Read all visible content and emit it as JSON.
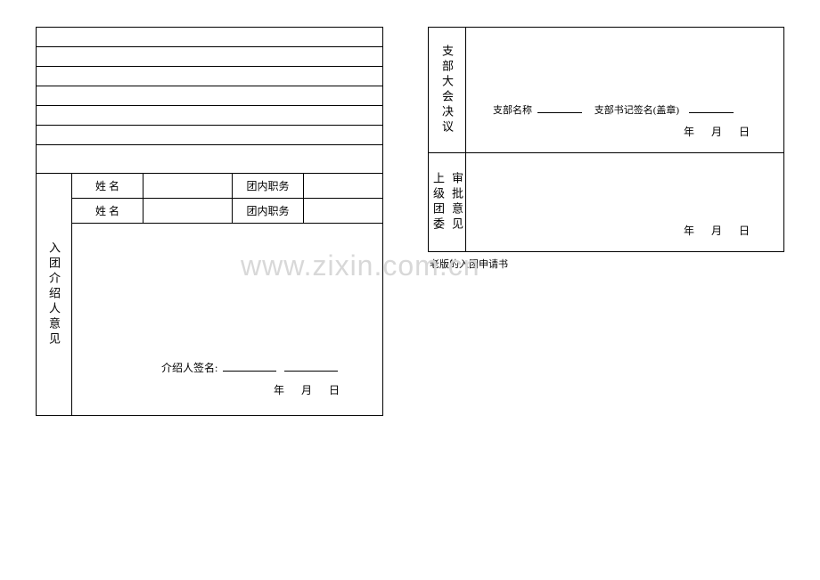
{
  "leftForm": {
    "introLabel": "入团介绍人意见",
    "nameLabel": "姓 名",
    "positionLabel": "团内职务",
    "signPrefix": "介绍人签名:",
    "dateFormat": "年 月 日"
  },
  "rightForm": {
    "resolutionLabel": "支部大会决议",
    "branchNamePrefix": "支部名称",
    "secretaryPrefix": "支部书记签名(盖章)",
    "dateFormat": "年 月 日",
    "upperLabel1": "上级团委",
    "upperLabel2": "审批意见",
    "caption": "老版的入团申请书"
  },
  "watermark": "www.zixin.com.cn",
  "styling": {
    "borderColor": "#000000",
    "backgroundColor": "#ffffff",
    "watermarkColor": "#d8d8d8",
    "fontSize": {
      "label": 12,
      "small": 11,
      "watermark": 32
    },
    "dimensions": {
      "leftFormWidth": 390,
      "rightFormWidth": 400,
      "emptyRowHeight": 22,
      "introRowHeight": 28
    }
  }
}
